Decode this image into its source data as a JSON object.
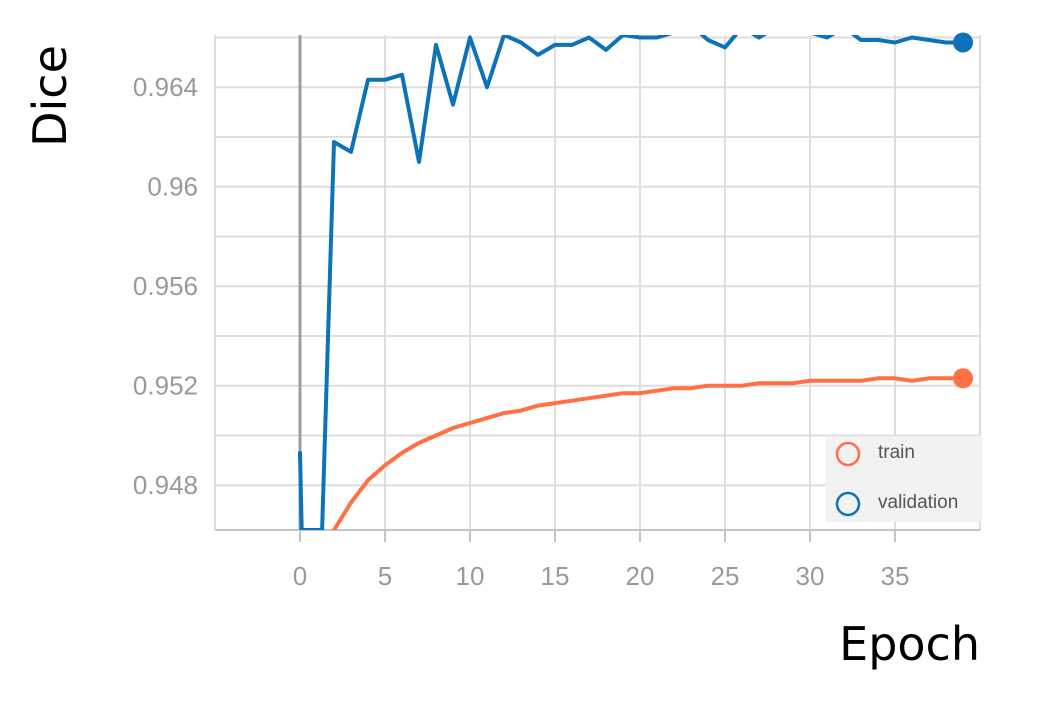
{
  "chart_data": {
    "type": "line",
    "xlabel": "Epoch",
    "ylabel": "Dice",
    "xlim": [
      -5,
      40
    ],
    "ylim": [
      0.9462,
      0.9661
    ],
    "x_ticks": [
      0,
      5,
      10,
      15,
      20,
      25,
      30,
      35
    ],
    "y_ticks": [
      0.948,
      0.952,
      0.956,
      0.96,
      0.964
    ],
    "y_tick_labels": [
      "0.948",
      "0.952",
      "0.956",
      "0.96",
      "0.964"
    ],
    "grid": true,
    "legend_position": "bottom-right",
    "series": [
      {
        "name": "train",
        "color": "#ff7043",
        "x": [
          2,
          3,
          4,
          5,
          6,
          7,
          8,
          9,
          10,
          11,
          12,
          13,
          14,
          15,
          16,
          17,
          18,
          19,
          20,
          21,
          22,
          23,
          24,
          25,
          26,
          27,
          28,
          29,
          30,
          31,
          32,
          33,
          34,
          35,
          36,
          37,
          38,
          39
        ],
        "y": [
          0.9462,
          0.9473,
          0.9482,
          0.9488,
          0.9493,
          0.9497,
          0.95,
          0.9503,
          0.9505,
          0.9507,
          0.9509,
          0.951,
          0.9512,
          0.9513,
          0.9514,
          0.9515,
          0.9516,
          0.9517,
          0.9517,
          0.9518,
          0.9519,
          0.9519,
          0.952,
          0.952,
          0.952,
          0.9521,
          0.9521,
          0.9521,
          0.9522,
          0.9522,
          0.9522,
          0.9522,
          0.9523,
          0.9523,
          0.9522,
          0.9523,
          0.9523,
          0.9523
        ]
      },
      {
        "name": "validation",
        "color": "#0d72b8",
        "x": [
          0,
          0.1,
          1.3,
          2,
          3,
          4,
          5,
          6,
          7,
          8,
          9,
          10,
          11,
          12,
          13,
          14,
          15,
          16,
          17,
          18,
          19,
          20,
          21,
          22,
          23,
          24,
          25,
          26,
          27,
          28,
          29,
          30,
          31,
          32,
          33,
          34,
          35,
          36,
          37,
          38,
          39
        ],
        "y": [
          0.9493,
          0.9462,
          0.9462,
          0.9618,
          0.9614,
          0.9643,
          0.9643,
          0.9645,
          0.961,
          0.9657,
          0.9633,
          0.966,
          0.964,
          0.9661,
          0.9658,
          0.9653,
          0.9657,
          0.9657,
          0.966,
          0.9655,
          0.9661,
          0.966,
          0.966,
          0.9662,
          0.9665,
          0.9659,
          0.9656,
          0.9664,
          0.966,
          0.9664,
          0.9662,
          0.9662,
          0.966,
          0.9664,
          0.9659,
          0.9659,
          0.9658,
          0.966,
          0.9659,
          0.9658,
          0.9658
        ]
      }
    ]
  }
}
